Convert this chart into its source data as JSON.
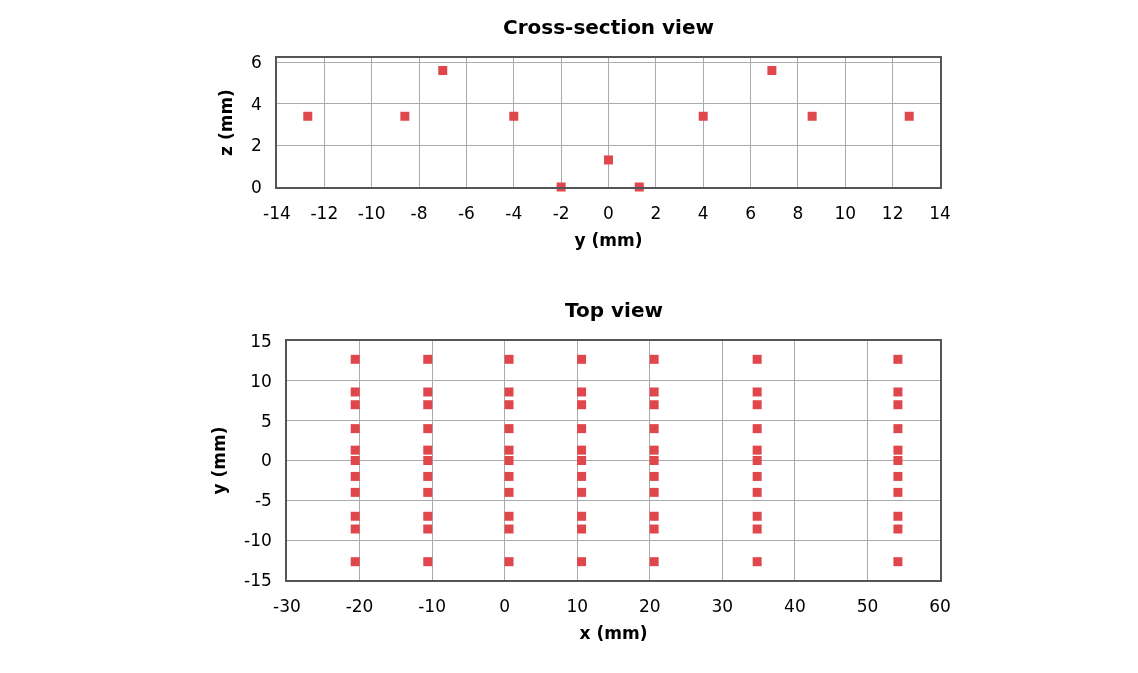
{
  "chart_data": [
    {
      "type": "scatter",
      "title": "Cross-section view",
      "xlabel": "y (mm)",
      "ylabel": "z (mm)",
      "marker": "square",
      "grid": true,
      "xlim": [
        -14,
        14
      ],
      "xticks": [
        -14,
        -12,
        -10,
        -8,
        -6,
        -4,
        -2,
        0,
        2,
        4,
        6,
        8,
        10,
        12,
        14
      ],
      "ylim": [
        0,
        6.2
      ],
      "yticks": [
        0,
        2,
        4,
        6
      ],
      "series": [
        {
          "color": "#e0474c",
          "x": [
            -12.7,
            -8.6,
            -7,
            -4,
            -2,
            0,
            1.3,
            4,
            6.9,
            8.6,
            12.7
          ],
          "values": [
            3.4,
            3.4,
            5.6,
            3.4,
            0,
            1.3,
            0,
            3.4,
            5.6,
            3.4,
            3.4
          ]
        }
      ]
    },
    {
      "type": "scatter",
      "title": "Top view",
      "xlabel": "x (mm)",
      "ylabel": "y (mm)",
      "marker": "square",
      "grid": true,
      "xlim": [
        -30,
        60
      ],
      "xticks": [
        -30,
        -20,
        -10,
        0,
        10,
        20,
        30,
        40,
        50,
        60
      ],
      "ylim": [
        -15,
        15
      ],
      "yticks": [
        -15,
        -10,
        -5,
        0,
        5,
        10,
        15
      ],
      "series": [
        {
          "color": "#e0474c",
          "x": [
            -20.6,
            -20.6,
            -20.6,
            -20.6,
            -20.6,
            -20.6,
            -20.6,
            -20.6,
            -20.6,
            -20.6,
            -20.6
          ],
          "values": [
            12.7,
            8.6,
            7,
            4,
            1.3,
            0,
            -2,
            -4,
            -7,
            -8.6,
            -12.7
          ]
        },
        {
          "color": "#e0474c",
          "x": [
            -10.6,
            -10.6,
            -10.6,
            -10.6,
            -10.6,
            -10.6,
            -10.6,
            -10.6,
            -10.6,
            -10.6,
            -10.6
          ],
          "values": [
            12.7,
            8.6,
            7,
            4,
            1.3,
            0,
            -2,
            -4,
            -7,
            -8.6,
            -12.7
          ]
        },
        {
          "color": "#e0474c",
          "x": [
            0.6,
            0.6,
            0.6,
            0.6,
            0.6,
            0.6,
            0.6,
            0.6,
            0.6,
            0.6,
            0.6
          ],
          "values": [
            12.7,
            8.6,
            7,
            4,
            1.3,
            0,
            -2,
            -4,
            -7,
            -8.6,
            -12.7
          ]
        },
        {
          "color": "#e0474c",
          "x": [
            10.6,
            10.6,
            10.6,
            10.6,
            10.6,
            10.6,
            10.6,
            10.6,
            10.6,
            10.6,
            10.6
          ],
          "values": [
            12.7,
            8.6,
            7,
            4,
            1.3,
            0,
            -2,
            -4,
            -7,
            -8.6,
            -12.7
          ]
        },
        {
          "color": "#e0474c",
          "x": [
            20.6,
            20.6,
            20.6,
            20.6,
            20.6,
            20.6,
            20.6,
            20.6,
            20.6,
            20.6,
            20.6
          ],
          "values": [
            12.7,
            8.6,
            7,
            4,
            1.3,
            0,
            -2,
            -4,
            -7,
            -8.6,
            -12.7
          ]
        },
        {
          "color": "#e0474c",
          "x": [
            34.8,
            34.8,
            34.8,
            34.8,
            34.8,
            34.8,
            34.8,
            34.8,
            34.8,
            34.8,
            34.8
          ],
          "values": [
            12.7,
            8.6,
            7,
            4,
            1.3,
            0,
            -2,
            -4,
            -7,
            -8.6,
            -12.7
          ]
        },
        {
          "color": "#e0474c",
          "x": [
            54.2,
            54.2,
            54.2,
            54.2,
            54.2,
            54.2,
            54.2,
            54.2,
            54.2,
            54.2,
            54.2
          ],
          "values": [
            12.7,
            8.6,
            7,
            4,
            1.3,
            0,
            -2,
            -4,
            -7,
            -8.6,
            -12.7
          ]
        }
      ]
    }
  ]
}
